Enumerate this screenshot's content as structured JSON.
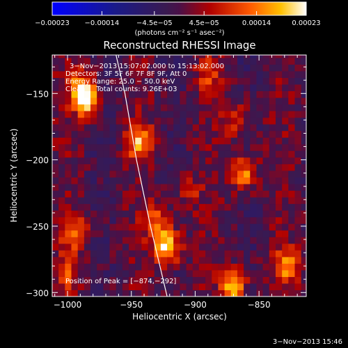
{
  "chart_data": {
    "type": "heatmap",
    "title": "Reconstructed RHESSI Image",
    "xlabel": "Heliocentric X (arcsec)",
    "ylabel": "Heliocentric Y (arcsec)",
    "xlim": [
      -1012,
      -813
    ],
    "ylim": [
      -303,
      -121
    ],
    "x_ticks": [
      -1000,
      -950,
      -900,
      -850
    ],
    "x_tick_labels": [
      "−1000",
      "−950",
      "−900",
      "−850"
    ],
    "y_ticks": [
      -150,
      -200,
      -250,
      -300
    ],
    "y_tick_labels": [
      "−150",
      "−200",
      "−250",
      "−300"
    ],
    "colorbar": {
      "range": [
        -0.00023,
        0.00023
      ],
      "ticks": [
        -0.00023,
        -0.00014,
        -4.5e-05,
        4.5e-05,
        0.00014,
        0.00023
      ],
      "tick_labels": [
        "−0.00023",
        "−0.00014",
        "−4.5e−05",
        "4.5e−05",
        "0.00014",
        "0.00023"
      ],
      "units_label": "(photons cm⁻² s⁻¹ asec⁻²)"
    },
    "annotations": [
      "3−Nov−2013 15:07:02.000 to 15:13:02.000",
      "Detectors: 3F 5F 6F 7F 8F 9F, Att 0",
      "Energy Range: 25.0 − 50.0 keV",
      "Clean     Total counts: 9.26E+03"
    ],
    "peak_label": "Position of Peak = [−874,−292]",
    "peak": [
      -874,
      -292
    ],
    "limb_curve": [
      [
        -962,
        -121
      ],
      [
        -955,
        -150
      ],
      [
        -946,
        -200
      ],
      [
        -935,
        -250
      ],
      [
        -922,
        -303
      ]
    ],
    "sources": [
      {
        "x": -985,
        "y": -155,
        "intensity": 0.00019
      },
      {
        "x": -990,
        "y": -145,
        "intensity": 0.00012
      },
      {
        "x": -944,
        "y": -185,
        "intensity": 0.00016
      },
      {
        "x": -922,
        "y": -265,
        "intensity": 0.00023
      },
      {
        "x": -930,
        "y": -245,
        "intensity": 0.00012
      },
      {
        "x": -862,
        "y": -210,
        "intensity": 0.00016
      },
      {
        "x": -868,
        "y": -170,
        "intensity": 0.0001
      },
      {
        "x": -870,
        "y": -295,
        "intensity": 0.00018
      },
      {
        "x": -828,
        "y": -280,
        "intensity": 0.00015
      },
      {
        "x": -995,
        "y": -255,
        "intensity": 0.00013
      },
      {
        "x": -1000,
        "y": -285,
        "intensity": 9e-05
      },
      {
        "x": -890,
        "y": -135,
        "intensity": 8e-05
      },
      {
        "x": -905,
        "y": -225,
        "intensity": 7e-05
      }
    ]
  },
  "footer": {
    "date_stamp": "3−Nov−2013 15:46"
  }
}
